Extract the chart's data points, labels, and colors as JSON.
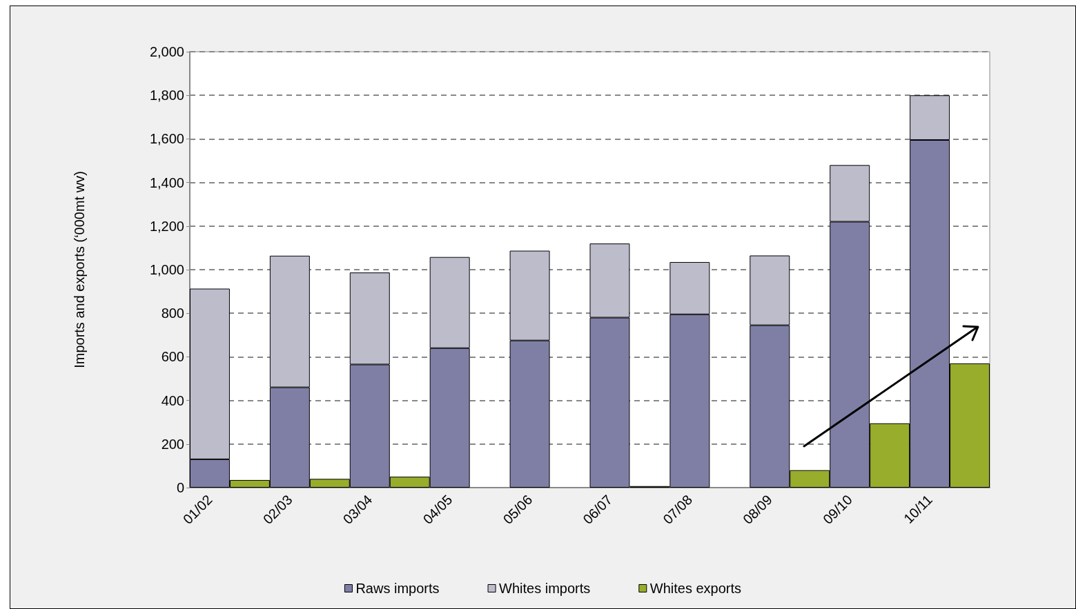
{
  "chart_data": {
    "type": "bar",
    "ylabel": "Imports and exports (‘000mt wv)",
    "categories": [
      "01/02",
      null,
      "02/03",
      null,
      "03/04",
      null,
      "04/05",
      null,
      "05/06",
      null,
      "06/07",
      null,
      "07/08",
      null,
      "08/09",
      null,
      "09/10",
      null,
      "10/11",
      null
    ],
    "series": [
      {
        "name": "Raws imports",
        "color": "#7f7fa6",
        "values": [
          130,
          null,
          460,
          null,
          565,
          null,
          640,
          null,
          675,
          null,
          780,
          null,
          795,
          null,
          745,
          null,
          1220,
          null,
          1595,
          null
        ]
      },
      {
        "name": "Whites imports",
        "color": "#bcbccb",
        "values": [
          783,
          null,
          604,
          null,
          422,
          null,
          418,
          null,
          412,
          null,
          340,
          null,
          240,
          null,
          320,
          null,
          260,
          null,
          205,
          null
        ]
      },
      {
        "name": "Whites exports",
        "color": "#98ad2c",
        "values": [
          null,
          35,
          null,
          40,
          null,
          50,
          null,
          null,
          null,
          null,
          null,
          7,
          null,
          null,
          null,
          80,
          null,
          295,
          null,
          570
        ]
      }
    ],
    "stacked": true,
    "ylim": [
      0,
      2000
    ],
    "yticks": [
      0,
      200,
      400,
      600,
      800,
      {
        "value": 1000,
        "label": "1,000"
      },
      {
        "value": 1200,
        "label": "1,200"
      },
      {
        "value": 1400,
        "label": "1,400"
      },
      {
        "value": 1600,
        "label": "1,600"
      },
      {
        "value": 1800,
        "label": "1,800"
      },
      {
        "value": 2000,
        "label": "2,000"
      }
    ],
    "grid": "y",
    "legend": "bottom"
  }
}
